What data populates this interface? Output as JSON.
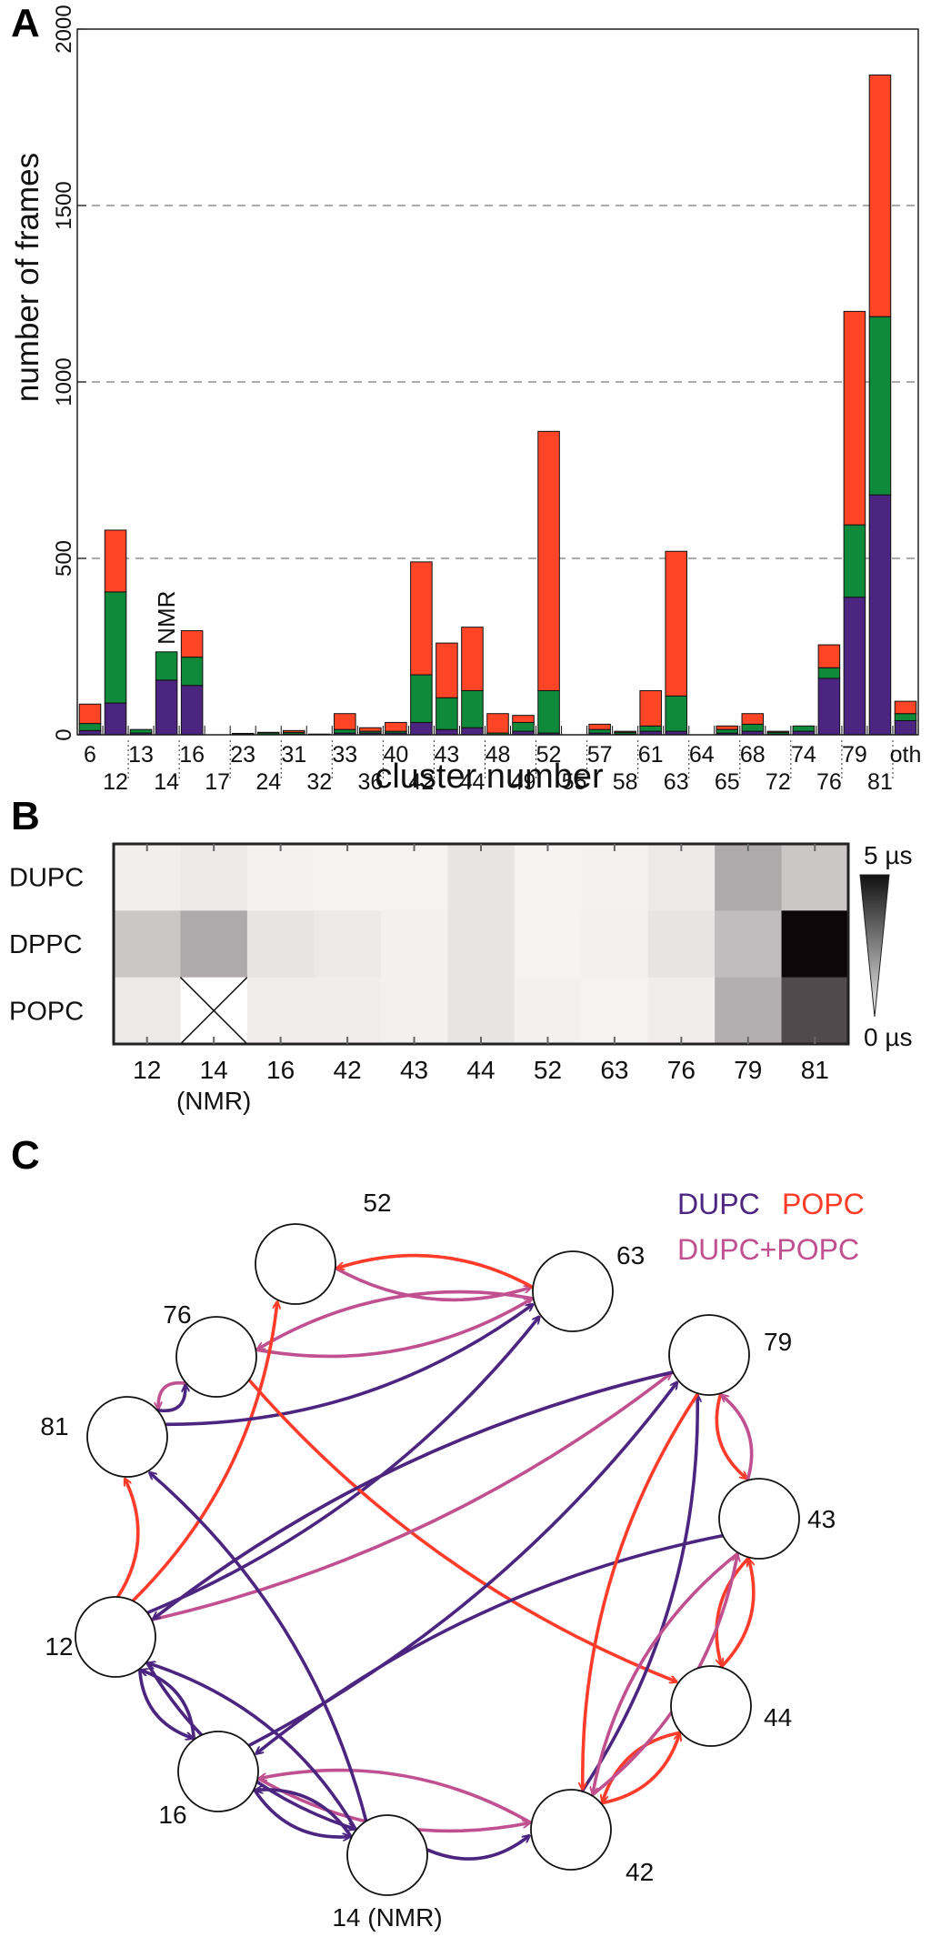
{
  "panels": {
    "a": {
      "label": "A"
    },
    "b": {
      "label": "B"
    },
    "c": {
      "label": "C"
    }
  },
  "chart_data": [
    {
      "type": "bar",
      "stacked": true,
      "panel": "A",
      "title": "",
      "xlabel": "cluster number",
      "ylabel": "number of frames",
      "ylim": [
        0,
        2000
      ],
      "yticks": [
        0,
        500,
        1000,
        1500,
        2000
      ],
      "grid": "dashed horizontal at 500, 1000, 1500",
      "categories": [
        "6",
        "12",
        "13",
        "14",
        "16",
        "17",
        "23",
        "24",
        "31",
        "32",
        "33",
        "36",
        "40",
        "42",
        "43",
        "44",
        "48",
        "49",
        "52",
        "55",
        "57",
        "58",
        "61",
        "63",
        "64",
        "65",
        "68",
        "72",
        "74",
        "76",
        "79",
        "81",
        "oth"
      ],
      "tick_labels_top": [
        "6",
        "13",
        "16",
        "23",
        "31",
        "33",
        "40",
        "43",
        "48",
        "52",
        "57",
        "61",
        "64",
        "68",
        "74",
        "79",
        "oth"
      ],
      "tick_labels_bottom": [
        "12",
        "14",
        "17",
        "24",
        "32",
        "36",
        "42",
        "44",
        "49",
        "55",
        "58",
        "63",
        "65",
        "72",
        "76",
        "81"
      ],
      "annotation": {
        "category": "14",
        "text": "NMR"
      },
      "series": [
        {
          "name": "DUPC",
          "color": "#4b2580",
          "values": [
            12,
            90,
            5,
            155,
            140,
            0,
            0,
            0,
            2,
            0,
            5,
            5,
            5,
            35,
            15,
            20,
            0,
            10,
            5,
            0,
            5,
            2,
            10,
            10,
            0,
            5,
            10,
            2,
            10,
            160,
            390,
            680,
            40
          ]
        },
        {
          "name": "DPPC",
          "color": "#0e8a3a",
          "values": [
            20,
            315,
            10,
            80,
            80,
            0,
            2,
            5,
            5,
            2,
            10,
            5,
            5,
            135,
            90,
            105,
            5,
            25,
            120,
            0,
            10,
            5,
            15,
            100,
            0,
            10,
            20,
            5,
            15,
            30,
            205,
            505,
            20
          ]
        },
        {
          "name": "POPC",
          "color": "#ff4526",
          "values": [
            55,
            175,
            0,
            0,
            75,
            0,
            2,
            2,
            5,
            0,
            45,
            10,
            25,
            320,
            155,
            180,
            55,
            20,
            735,
            0,
            15,
            3,
            100,
            410,
            0,
            10,
            30,
            3,
            0,
            65,
            605,
            685,
            35
          ]
        }
      ]
    },
    {
      "type": "heatmap",
      "panel": "B",
      "rows": [
        "DUPC",
        "DPPC",
        "POPC"
      ],
      "columns": [
        "12",
        "14",
        "16",
        "42",
        "43",
        "44",
        "52",
        "63",
        "76",
        "79",
        "81"
      ],
      "column_sublabels": [
        "",
        "(NMR)",
        "",
        "",
        "",
        "",
        "",
        "",
        "",
        "",
        ""
      ],
      "values": [
        [
          0.18,
          0.3,
          0.12,
          0.1,
          0.1,
          0.4,
          0.08,
          0.12,
          0.3,
          1.6,
          1.0
        ],
        [
          1.0,
          1.6,
          0.4,
          0.3,
          0.15,
          0.4,
          0.1,
          0.15,
          0.4,
          1.2,
          5.0
        ],
        [
          0.3,
          null,
          0.2,
          0.2,
          0.15,
          0.4,
          0.15,
          0.1,
          0.2,
          1.5,
          3.6
        ]
      ],
      "missing_mark": "X",
      "colorbar": {
        "max_label": "5 µs",
        "min_label": "0 µs",
        "range": [
          0,
          5
        ],
        "unit": "µs"
      }
    },
    {
      "type": "network",
      "panel": "C",
      "legend": {
        "dupc": "DUPC",
        "popc": "POPC",
        "both": "DUPC+POPC"
      },
      "legend_colors": {
        "DUPC": "#4b2580",
        "POPC": "#ff3b2a",
        "DUPC+POPC": "#c0508f"
      },
      "nodes": [
        "52",
        "63",
        "76",
        "79",
        "81",
        "43",
        "12",
        "44",
        "16",
        "42",
        "14 (NMR)"
      ],
      "edges": [
        {
          "from": "52",
          "to": "63",
          "type": "DUPC+POPC"
        },
        {
          "from": "63",
          "to": "52",
          "type": "POPC"
        },
        {
          "from": "63",
          "to": "76",
          "type": "DUPC+POPC"
        },
        {
          "from": "76",
          "to": "63",
          "type": "DUPC+POPC"
        },
        {
          "from": "12",
          "to": "52",
          "type": "POPC"
        },
        {
          "from": "12",
          "to": "63",
          "type": "DUPC"
        },
        {
          "from": "81",
          "to": "63",
          "type": "DUPC"
        },
        {
          "from": "76",
          "to": "81",
          "type": "DUPC+POPC"
        },
        {
          "from": "81",
          "to": "76",
          "type": "DUPC"
        },
        {
          "from": "76",
          "to": "44",
          "type": "POPC"
        },
        {
          "from": "12",
          "to": "81",
          "type": "POPC"
        },
        {
          "from": "12",
          "to": "79",
          "type": "DUPC+POPC"
        },
        {
          "from": "79",
          "to": "12",
          "type": "DUPC+POPC"
        },
        {
          "from": "79",
          "to": "12",
          "type": "DUPC"
        },
        {
          "from": "16",
          "to": "79",
          "type": "DUPC"
        },
        {
          "from": "79",
          "to": "43",
          "type": "POPC"
        },
        {
          "from": "43",
          "to": "79",
          "type": "DUPC+POPC"
        },
        {
          "from": "43",
          "to": "44",
          "type": "POPC"
        },
        {
          "from": "44",
          "to": "43",
          "type": "POPC"
        },
        {
          "from": "43",
          "to": "16",
          "type": "DUPC"
        },
        {
          "from": "42",
          "to": "44",
          "type": "POPC"
        },
        {
          "from": "44",
          "to": "42",
          "type": "POPC"
        },
        {
          "from": "42",
          "to": "79",
          "type": "DUPC"
        },
        {
          "from": "79",
          "to": "42",
          "type": "POPC"
        },
        {
          "from": "42",
          "to": "43",
          "type": "DUPC+POPC"
        },
        {
          "from": "43",
          "to": "42",
          "type": "DUPC+POPC"
        },
        {
          "from": "16",
          "to": "42",
          "type": "DUPC+POPC"
        },
        {
          "from": "42",
          "to": "16",
          "type": "DUPC+POPC"
        },
        {
          "from": "12",
          "to": "16",
          "type": "DUPC"
        },
        {
          "from": "16",
          "to": "12",
          "type": "DUPC"
        },
        {
          "from": "14 (NMR)",
          "to": "81",
          "type": "DUPC"
        },
        {
          "from": "14 (NMR)",
          "to": "12",
          "type": "DUPC"
        },
        {
          "from": "12",
          "to": "14 (NMR)",
          "type": "DUPC"
        },
        {
          "from": "14 (NMR)",
          "to": "16",
          "type": "DUPC"
        },
        {
          "from": "16",
          "to": "14 (NMR)",
          "type": "DUPC"
        },
        {
          "from": "14 (NMR)",
          "to": "42",
          "type": "DUPC"
        }
      ]
    }
  ]
}
